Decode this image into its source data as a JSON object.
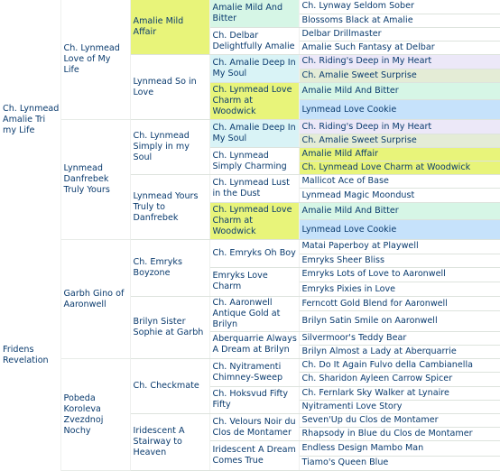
{
  "pedigree": {
    "sire": {
      "name": "Ch. Lynmead Amalie Tri my Life",
      "sire": {
        "name": "Ch. Lynmead Love of My Life",
        "sire": {
          "name": "Amalie Mild Affair",
          "sire": {
            "name": "Amalie Mild And Bitter",
            "sire": "Ch. Lynway Seldom Sober",
            "dam": "Blossoms Black at Amalie"
          },
          "dam": {
            "name": "Ch. Delbar Delightfully Amalie",
            "sire": "Delbar Drillmaster",
            "dam": "Amalie Such Fantasy at Delbar"
          }
        },
        "dam": {
          "name": "Lynmead So in Love",
          "sire": {
            "name": "Ch. Amalie Deep In My Soul",
            "sire": "Ch. Riding's Deep in My Heart",
            "dam": "Ch. Amalie Sweet Surprise"
          },
          "dam": {
            "name": "Ch. Lynmead Love Charm at Woodwick",
            "sire": "Amalie Mild And Bitter",
            "dam": "Lynmead Love Cookie"
          }
        }
      },
      "dam": {
        "name": "Lynmead Danfrebek Truly Yours",
        "sire": {
          "name": "Ch. Lynmead Simply in my Soul",
          "sire": {
            "name": "Ch. Amalie Deep In My Soul",
            "sire": "Ch. Riding's Deep in My Heart",
            "dam": "Ch. Amalie Sweet Surprise"
          },
          "dam": {
            "name": "Ch. Lynmead Simply Charming",
            "sire": "Amalie Mild Affair",
            "dam": "Ch. Lynmead Love Charm at Woodwick"
          }
        },
        "dam": {
          "name": "Lynmead Yours Truly to Danfrebek",
          "sire": {
            "name": "Ch. Lynmead Lust in the Dust",
            "sire": "Mallicot Ace of Base",
            "dam": "Lynmead Magic Moondust"
          },
          "dam": {
            "name": "Ch. Lynmead Love Charm at Woodwick",
            "sire": "Amalie Mild And Bitter",
            "dam": "Lynmead Love Cookie"
          }
        }
      }
    },
    "dam": {
      "name": "Fridens Revelation",
      "sire": {
        "name": "Garbh Gino of Aaronwell",
        "sire": {
          "name": "Ch. Emryks Boyzone",
          "sire": {
            "name": "Ch. Emryks Oh Boy",
            "sire": "Matai Paperboy at Playwell",
            "dam": "Emryks Sheer Bliss"
          },
          "dam": {
            "name": "Emryks Love Charm",
            "sire": "Emryks Lots of Love to Aaronwell",
            "dam": "Emryks Pixies in Love"
          }
        },
        "dam": {
          "name": "Brilyn Sister Sophie at Garbh",
          "sire": {
            "name": "Ch. Aaronwell Antique Gold at Brilyn",
            "sire": "Ferncott Gold Blend for Aaronwell",
            "dam": "Brilyn Satin Smile on Aaronwell"
          },
          "dam": {
            "name": "Aberquarrie Always A Dream at Brilyn",
            "sire": "Silvermoor's Teddy Bear",
            "dam": "Brilyn Almost a Lady at Aberquarrie"
          }
        }
      },
      "dam": {
        "name": "Pobeda Koroleva Zvezdnoj Nochy",
        "sire": {
          "name": "Ch. Checkmate",
          "sire": {
            "name": "Ch. Nyitramenti Chimney-Sweep",
            "sire": "Ch. Do It Again Fulvo della Cambianella",
            "dam": "Ch. Sharidon Ayleen Carrow Spicer"
          },
          "dam": {
            "name": "Ch. Hoksvud Fifty Fifty",
            "sire": "Ch. Fernlark Sky Walker at Lynaire",
            "dam": "Nyitramenti Love Story"
          }
        },
        "dam": {
          "name": "Iridescent A Stairway to Heaven",
          "sire": {
            "name": "Ch. Velours Noir du Clos de Montamer",
            "sire": "Seven'Up du Clos de Montamer",
            "dam": "Rhapsody in Blue du Clos de Montamer"
          },
          "dam": {
            "name": "Iridescent A Dream Comes True",
            "sire": "Endless Design Mambo Man",
            "dam": "Tiamo's Queen Blue"
          }
        }
      }
    }
  },
  "highlight_colors": {
    "amalie_mild_affair": "#e8f47a",
    "lynmead_love_charm_at_woodwick": "#e8f47a",
    "amalie_mild_and_bitter": "#d6f6e6",
    "lynmead_love_cookie": "#c6e2fb",
    "ridings_deep_in_my_heart": "#ece8f8",
    "amalie_sweet_surprise": "#e4ecd6",
    "amalie_deep_in_my_soul": "#d9f3f6",
    "text": "#0a3b6e"
  }
}
